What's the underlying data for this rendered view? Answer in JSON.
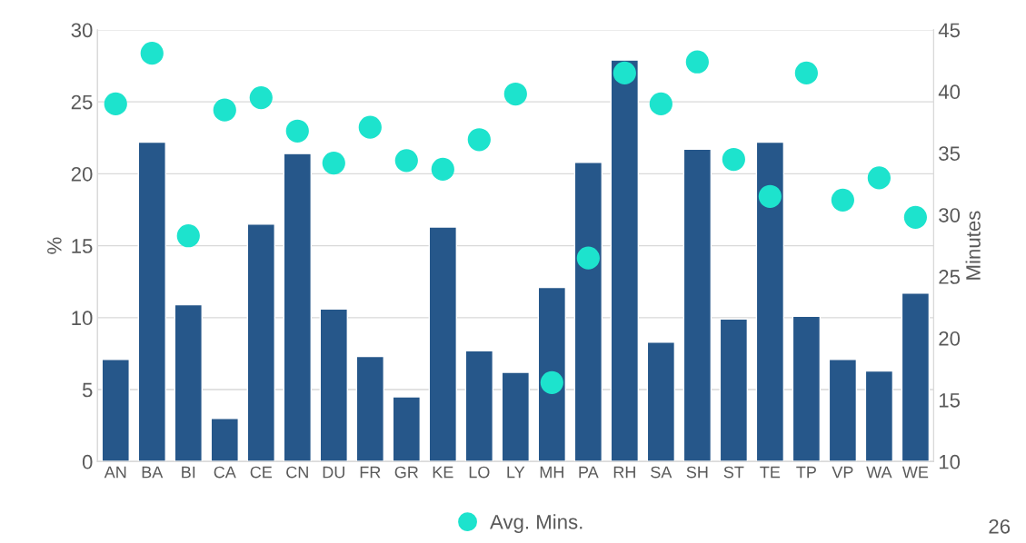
{
  "chart_data": {
    "type": "bar",
    "ylabel": "%",
    "y2label": "Minutes",
    "categories": [
      "AN",
      "BA",
      "BI",
      "CA",
      "CE",
      "CN",
      "DU",
      "FR",
      "GR",
      "KE",
      "LO",
      "LY",
      "MH",
      "PA",
      "RH",
      "SA",
      "SH",
      "ST",
      "TE",
      "TP",
      "VP",
      "WA",
      "WE"
    ],
    "series": [
      {
        "color": "#26578a",
        "values": [
          7.1,
          22.2,
          10.9,
          3.0,
          16.5,
          21.4,
          10.6,
          7.3,
          4.5,
          16.3,
          7.7,
          6.2,
          12.1,
          20.8,
          27.9,
          8.3,
          21.7,
          9.9,
          22.2,
          10.1,
          7.1,
          6.3,
          11.7
        ]
      },
      {
        "type": "scatter",
        "axis": "y2",
        "name": "Avg. Mins.",
        "color": "#1de3cd",
        "values": [
          39.0,
          43.1,
          28.3,
          38.5,
          39.5,
          36.8,
          34.2,
          37.1,
          34.4,
          33.7,
          36.1,
          39.8,
          16.4,
          26.5,
          41.5,
          39.0,
          42.4,
          34.5,
          31.5,
          41.5,
          31.2,
          33.0,
          29.8
        ]
      }
    ],
    "ylim": [
      0,
      30
    ],
    "yticks": [
      0,
      5,
      10,
      15,
      20,
      25,
      30
    ],
    "y2lim": [
      10,
      45
    ],
    "y2ticks": [
      10,
      15,
      20,
      25,
      30,
      35,
      40,
      45
    ],
    "grid": "y",
    "legend": "bottom",
    "marker": "circle",
    "annotations": [
      "26"
    ]
  }
}
